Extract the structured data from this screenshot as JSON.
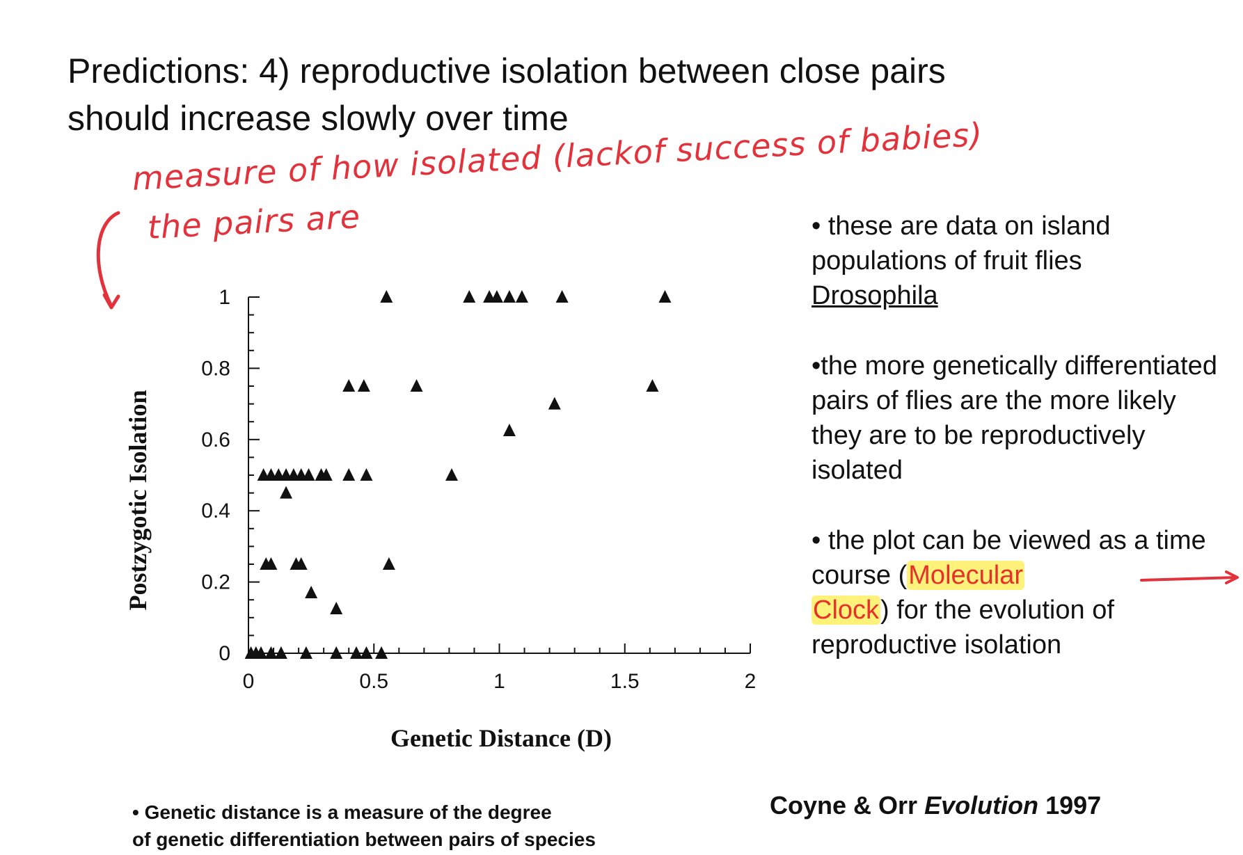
{
  "slide": {
    "title_line1": "Predictions: 4) reproductive isolation between close pairs",
    "title_line2": "should increase slowly over time"
  },
  "annotation": {
    "line1": "measure of how isolated (lackof success of babies)",
    "line2": "the pairs are",
    "color": "#e2323c"
  },
  "bullets": {
    "b1_prefix": "• these are data on island populations of fruit flies",
    "b1_underlined": "Drosophila",
    "b2": "•the more genetically differentiated pairs of flies are the more likely they are to be reproductively isolated",
    "b3_prefix": "• the plot can be viewed as a time course (",
    "b3_hl1": "Molecular",
    "b3_hl2": "Clock",
    "b3_suffix": ") for the evolution of reproductive isolation"
  },
  "footnote": {
    "line1": "• Genetic distance is a measure of the degree",
    "line2": "of genetic differentiation between pairs of species"
  },
  "citation": {
    "authors": "Coyne & Orr",
    "journal": "Evolution",
    "year": "1997"
  },
  "chart_data": {
    "type": "scatter",
    "title": "",
    "xlabel": "Genetic Distance (D)",
    "ylabel": "Postzygotic Isolation",
    "xlim": [
      0,
      2
    ],
    "ylim": [
      0,
      1
    ],
    "xticks": [
      "0",
      "0.5",
      "1",
      "1.5",
      "2"
    ],
    "yticks": [
      "0",
      "0.2",
      "0.4",
      "0.6",
      "0.8",
      "1"
    ],
    "marker": "triangle",
    "grid": false,
    "points": [
      {
        "x": 0.01,
        "y": 0
      },
      {
        "x": 0.03,
        "y": 0
      },
      {
        "x": 0.05,
        "y": 0
      },
      {
        "x": 0.09,
        "y": 0
      },
      {
        "x": 0.13,
        "y": 0
      },
      {
        "x": 0.23,
        "y": 0
      },
      {
        "x": 0.35,
        "y": 0
      },
      {
        "x": 0.43,
        "y": 0
      },
      {
        "x": 0.47,
        "y": 0
      },
      {
        "x": 0.53,
        "y": 0
      },
      {
        "x": 0.07,
        "y": 0.25
      },
      {
        "x": 0.09,
        "y": 0.25
      },
      {
        "x": 0.19,
        "y": 0.25
      },
      {
        "x": 0.21,
        "y": 0.25
      },
      {
        "x": 0.56,
        "y": 0.25
      },
      {
        "x": 0.25,
        "y": 0.17
      },
      {
        "x": 0.35,
        "y": 0.125
      },
      {
        "x": 0.15,
        "y": 0.45
      },
      {
        "x": 0.06,
        "y": 0.5
      },
      {
        "x": 0.09,
        "y": 0.5
      },
      {
        "x": 0.12,
        "y": 0.5
      },
      {
        "x": 0.15,
        "y": 0.5
      },
      {
        "x": 0.18,
        "y": 0.5
      },
      {
        "x": 0.21,
        "y": 0.5
      },
      {
        "x": 0.24,
        "y": 0.5
      },
      {
        "x": 0.29,
        "y": 0.5
      },
      {
        "x": 0.31,
        "y": 0.5
      },
      {
        "x": 0.4,
        "y": 0.5
      },
      {
        "x": 0.47,
        "y": 0.5
      },
      {
        "x": 0.81,
        "y": 0.5
      },
      {
        "x": 1.04,
        "y": 0.625
      },
      {
        "x": 1.22,
        "y": 0.7
      },
      {
        "x": 0.4,
        "y": 0.75
      },
      {
        "x": 0.46,
        "y": 0.75
      },
      {
        "x": 0.67,
        "y": 0.75
      },
      {
        "x": 1.61,
        "y": 0.75
      },
      {
        "x": 0.55,
        "y": 1
      },
      {
        "x": 0.88,
        "y": 1
      },
      {
        "x": 0.96,
        "y": 1
      },
      {
        "x": 0.99,
        "y": 1
      },
      {
        "x": 1.04,
        "y": 1
      },
      {
        "x": 1.09,
        "y": 1
      },
      {
        "x": 1.25,
        "y": 1
      },
      {
        "x": 1.66,
        "y": 1
      }
    ]
  }
}
